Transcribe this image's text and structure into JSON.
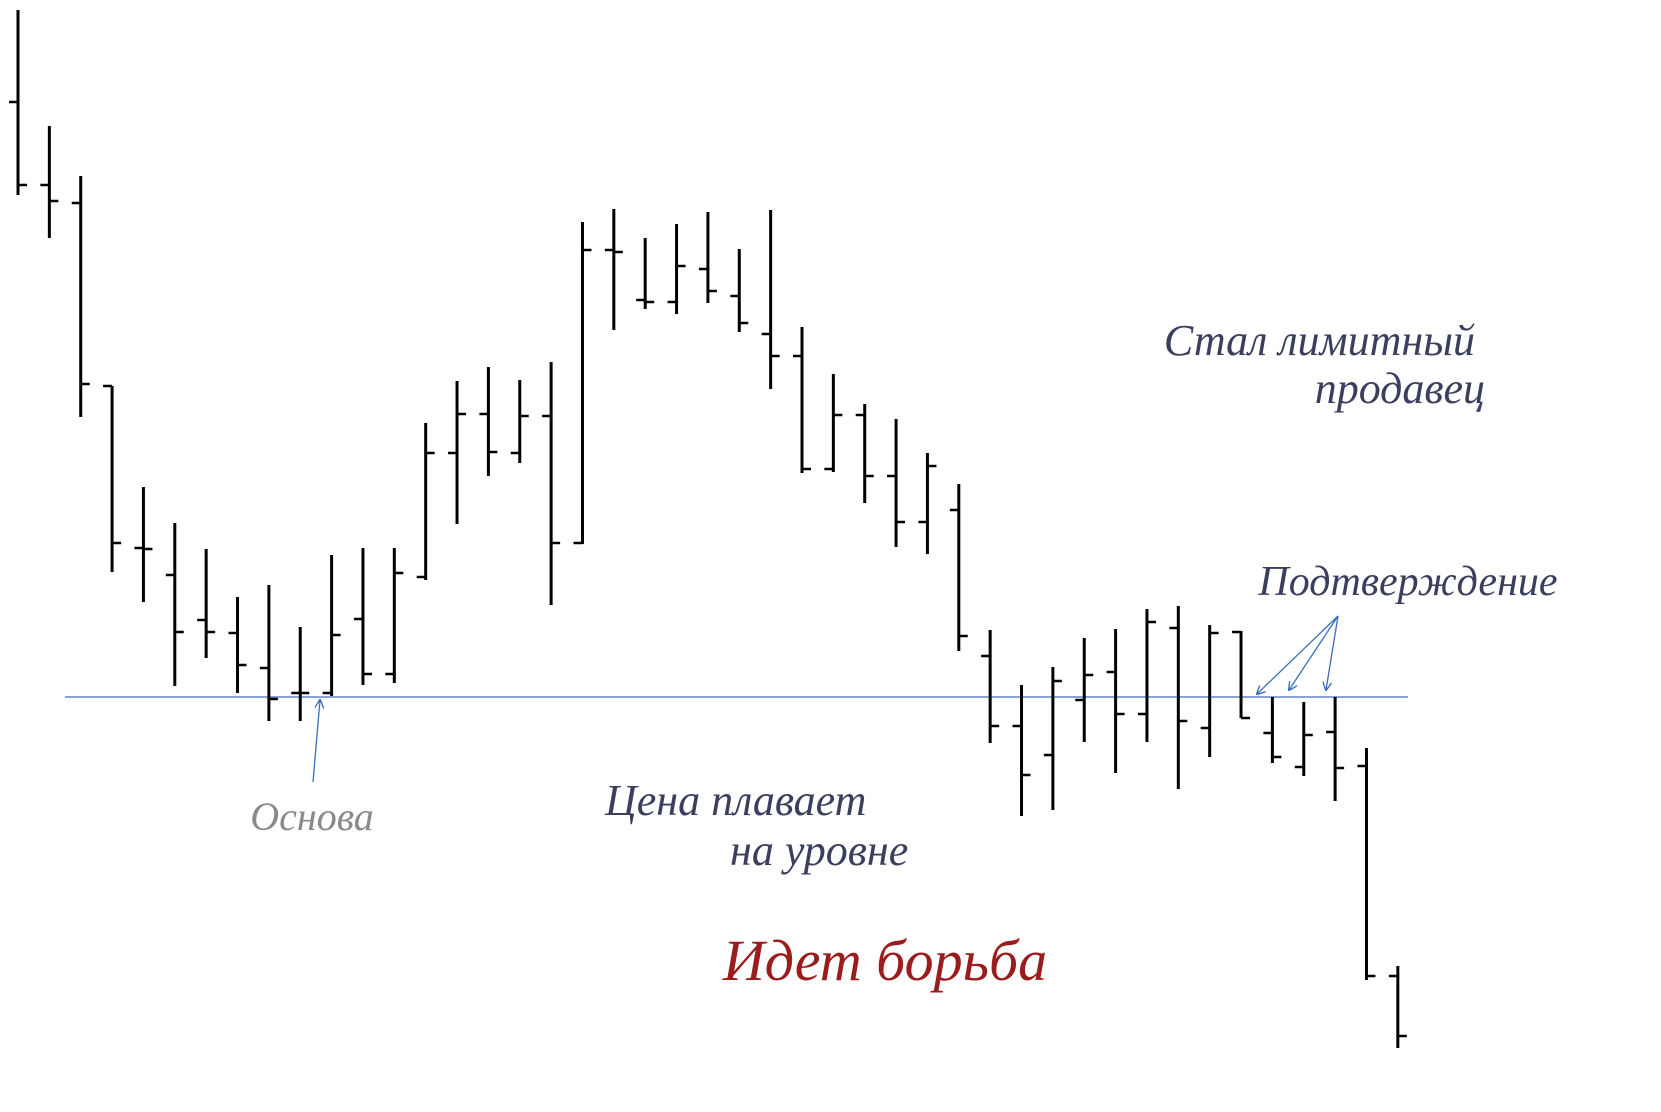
{
  "chart_data": {
    "type": "ohlc",
    "color": "#000000",
    "ylim": [
      0,
      1112
    ],
    "categories": [
      null,
      null,
      null,
      null,
      null,
      null,
      null,
      null,
      null,
      null,
      null,
      null,
      null,
      null,
      null,
      null,
      null,
      null,
      null,
      null,
      null,
      null,
      null,
      null,
      null,
      null,
      null,
      null,
      null,
      null,
      null,
      null,
      null,
      null,
      null,
      null,
      null,
      null,
      null,
      null,
      null,
      null,
      null,
      null,
      null
    ],
    "open": [
      1010,
      927,
      909,
      726,
      564,
      537,
      492,
      479,
      444,
      419,
      419,
      493,
      438,
      535,
      659,
      698,
      659,
      696,
      569,
      862,
      812,
      810,
      843,
      816,
      778,
      756,
      643,
      697,
      636,
      590,
      602,
      456,
      386,
      357,
      412,
      440,
      398,
      484,
      384,
      480,
      379,
      345,
      380,
      346,
      136
    ],
    "high": [
      1102,
      986,
      936,
      726,
      625,
      589,
      563,
      515,
      527,
      485,
      557,
      564,
      564,
      689,
      731,
      745,
      732,
      750,
      890,
      903,
      874,
      888,
      900,
      863,
      902,
      785,
      738,
      708,
      693,
      659,
      628,
      482,
      427,
      445,
      474,
      483,
      503,
      506,
      487,
      481,
      415,
      410,
      415,
      364,
      146
    ],
    "low": [
      917,
      874,
      695,
      540,
      510,
      426,
      454,
      419,
      391,
      391,
      416,
      427,
      429,
      532,
      588,
      636,
      649,
      507,
      568,
      782,
      803,
      798,
      809,
      780,
      723,
      639,
      640,
      609,
      565,
      558,
      461,
      369,
      296,
      302,
      370,
      339,
      370,
      323,
      355,
      394,
      349,
      336,
      311,
      132,
      64
    ],
    "close": [
      927,
      911,
      728,
      569,
      563,
      480,
      480,
      447,
      413,
      419,
      477,
      438,
      539,
      659,
      698,
      660,
      696,
      569,
      862,
      860,
      810,
      846,
      821,
      789,
      756,
      643,
      697,
      636,
      590,
      646,
      476,
      386,
      337,
      431,
      437,
      398,
      490,
      391,
      479,
      394,
      355,
      377,
      344,
      136,
      76
    ],
    "level": {
      "value": 415,
      "color": "#3a6fb5"
    },
    "annotations": [
      {
        "lines": [
          "Стал лимитный",
          "продавец"
        ],
        "color": "#3b3f5e"
      },
      {
        "lines": [
          "Подтверждение"
        ],
        "color": "#3b3f5e"
      },
      {
        "lines": [
          "Основа"
        ],
        "color": "#8a8a8a"
      },
      {
        "lines": [
          "Цена плавает",
          "на уровне"
        ],
        "color": "#3b3f5e"
      },
      {
        "lines": [
          "Идет борьба"
        ],
        "color": "#9b1c1c"
      }
    ]
  }
}
